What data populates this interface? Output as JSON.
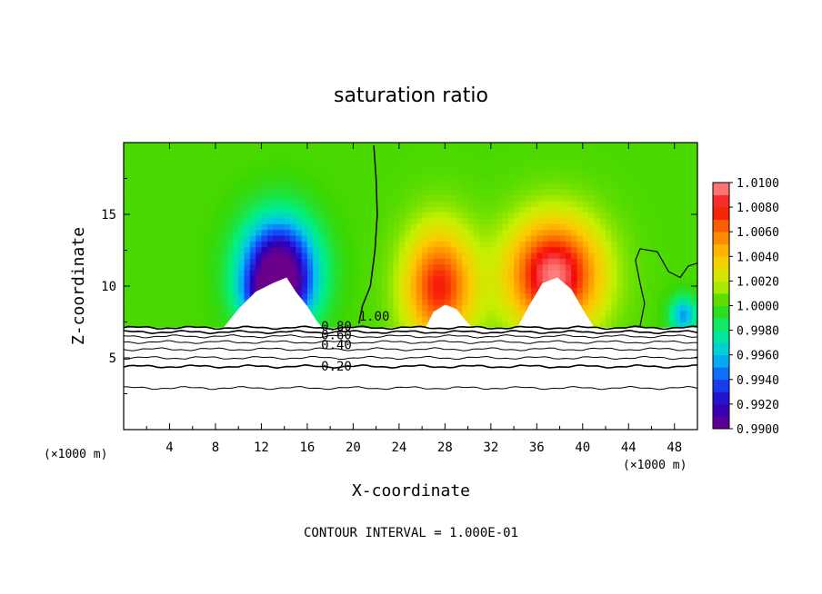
{
  "chart_data": {
    "type": "heatmap",
    "title": "saturation ratio",
    "xlabel": "X-coordinate",
    "ylabel": "Z-coordinate",
    "x_unit_left": "(×1000 m)",
    "x_unit_right": "(×1000 m)",
    "footer": "CONTOUR INTERVAL = 1.000E-01",
    "xlim": [
      0,
      50
    ],
    "ylim": [
      0,
      20
    ],
    "x_ticks": [
      "4",
      "8",
      "12",
      "16",
      "20",
      "24",
      "28",
      "32",
      "36",
      "40",
      "44",
      "48"
    ],
    "y_ticks": [
      "5",
      "10",
      "15"
    ],
    "colorbar": {
      "labels": [
        "1.0100",
        "1.0080",
        "1.0060",
        "1.0040",
        "1.0020",
        "1.0000",
        "0.9980",
        "0.9960",
        "0.9940",
        "0.9920",
        "0.9900"
      ],
      "min": 0.99,
      "max": 1.01
    },
    "contour_labels": [
      {
        "text": "1.00",
        "x": 20.5,
        "y": 7.6
      },
      {
        "text": "0.80",
        "x": 17.2,
        "y": 6.9
      },
      {
        "text": "0.60",
        "x": 17.2,
        "y": 6.3
      },
      {
        "text": "0.40",
        "x": 17.2,
        "y": 5.6
      },
      {
        "text": "0.20",
        "x": 17.2,
        "y": 4.1
      }
    ],
    "contour_levels_below": [
      7.1,
      6.8,
      6.5,
      6.1,
      5.6,
      5.0,
      4.4,
      2.9
    ],
    "field_features": [
      {
        "name": "dry-left",
        "xc": 13.5,
        "zc": 11.0,
        "sx": 3.2,
        "sz": 3.6,
        "amp": -0.0115
      },
      {
        "name": "dry-left-core",
        "xc": 13.0,
        "zc": 9.4,
        "sx": 2.4,
        "sz": 1.6,
        "amp": -0.004
      },
      {
        "name": "moist-mid",
        "xc": 27.5,
        "zc": 10.0,
        "sx": 3.0,
        "sz": 4.0,
        "amp": 0.0075
      },
      {
        "name": "moist-right",
        "xc": 37.5,
        "zc": 10.8,
        "sx": 4.0,
        "sz": 3.8,
        "amp": 0.0095
      },
      {
        "name": "dry-right-edge",
        "xc": 48.8,
        "zc": 8.0,
        "sx": 1.2,
        "sz": 1.3,
        "amp": -0.005
      }
    ]
  }
}
